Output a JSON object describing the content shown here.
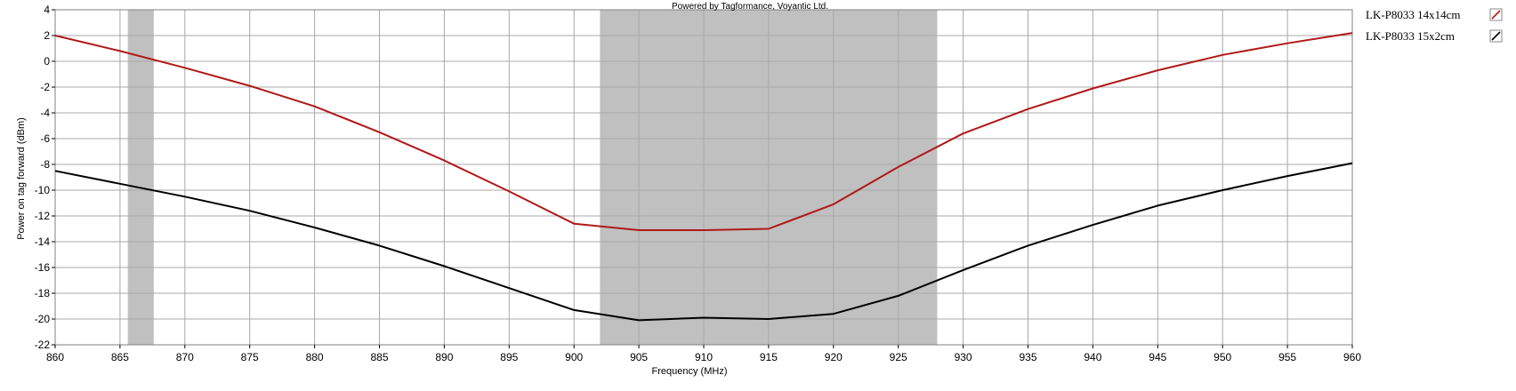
{
  "chart_data": {
    "type": "line",
    "credit": "Powered by Tagformance, Voyantic Ltd.",
    "xlabel": "Frequency (MHz)",
    "ylabel": "Power on tag forward (dBm)",
    "xlim": [
      860,
      960
    ],
    "ylim": [
      -22,
      4
    ],
    "x_ticks": [
      860,
      865,
      870,
      875,
      880,
      885,
      890,
      895,
      900,
      905,
      910,
      915,
      920,
      925,
      930,
      935,
      940,
      945,
      950,
      955,
      960
    ],
    "y_ticks": [
      4,
      2,
      0,
      -2,
      -4,
      -6,
      -8,
      -10,
      -12,
      -14,
      -16,
      -18,
      -20,
      -22
    ],
    "grid": true,
    "legend_position": "right",
    "shaded_bands": [
      {
        "x_start": 865.6,
        "x_end": 867.6,
        "color": "#c0c0c0"
      },
      {
        "x_start": 902,
        "x_end": 928,
        "color": "#c0c0c0"
      }
    ],
    "x": [
      860,
      865,
      870,
      875,
      880,
      885,
      890,
      895,
      900,
      905,
      910,
      915,
      920,
      925,
      930,
      935,
      940,
      945,
      950,
      955,
      960
    ],
    "series": [
      {
        "name": "LK-P8033 14x14cm",
        "color": "#b01818",
        "values": [
          2.0,
          0.8,
          -0.5,
          -1.9,
          -3.5,
          -5.5,
          -7.7,
          -10.1,
          -12.6,
          -13.1,
          -13.1,
          -13.0,
          -11.1,
          -8.2,
          -5.6,
          -3.7,
          -2.1,
          -0.7,
          0.5,
          1.4,
          2.2
        ]
      },
      {
        "name": "LK-P8033 15x2cm",
        "color": "#000000",
        "values": [
          -8.5,
          -9.5,
          -10.5,
          -11.6,
          -12.9,
          -14.3,
          -15.9,
          -17.6,
          -19.3,
          -20.1,
          -19.9,
          -20.0,
          -19.6,
          -18.2,
          -16.2,
          -14.3,
          -12.7,
          -11.2,
          -10.0,
          -8.9,
          -7.9
        ]
      }
    ]
  }
}
